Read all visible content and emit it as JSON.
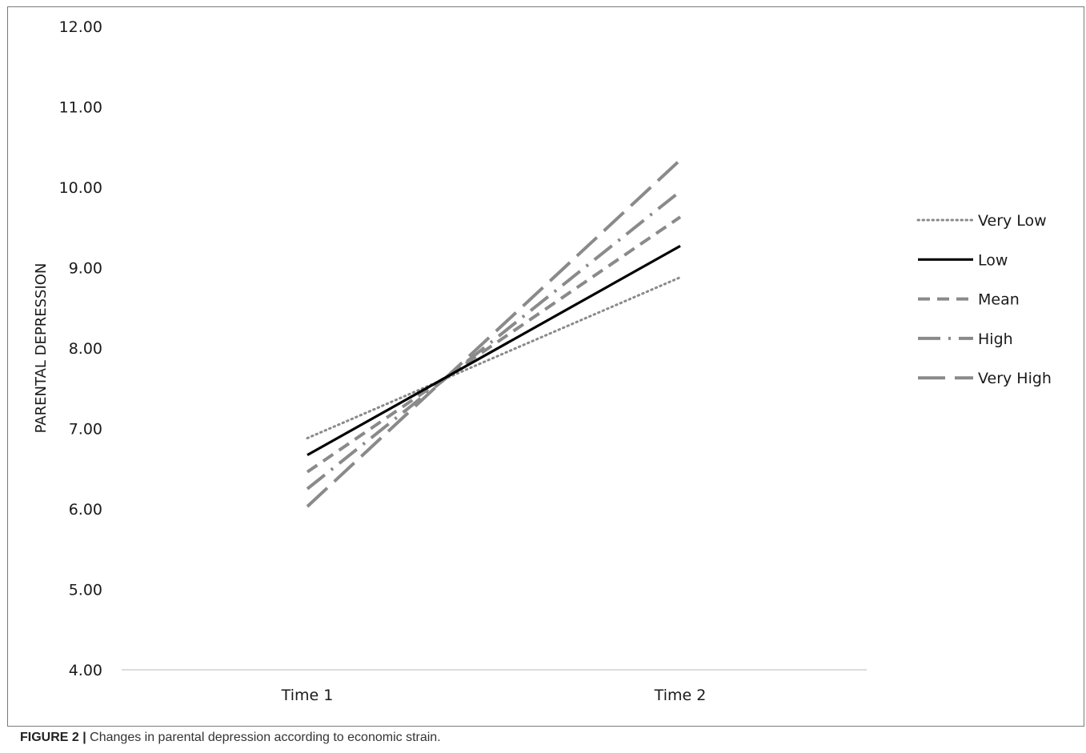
{
  "chart_data": {
    "type": "line",
    "title": "",
    "xlabel": "",
    "ylabel": "PARENTAL DEPRESSION",
    "categories": [
      "Time 1",
      "Time 2"
    ],
    "ylim": [
      4.0,
      12.0
    ],
    "yticks": [
      "4.00",
      "5.00",
      "6.00",
      "7.00",
      "8.00",
      "9.00",
      "10.00",
      "11.00",
      "12.00"
    ],
    "grid": false,
    "legend_position": "right",
    "series": [
      {
        "name": "Very Low",
        "values": [
          6.88,
          8.88
        ],
        "color": "#8a8a8a",
        "dash": "dotted"
      },
      {
        "name": "Low",
        "values": [
          6.67,
          9.27
        ],
        "color": "#000000",
        "dash": "solid"
      },
      {
        "name": "Mean",
        "values": [
          6.46,
          9.63
        ],
        "color": "#8a8a8a",
        "dash": "dashed"
      },
      {
        "name": "High",
        "values": [
          6.25,
          9.95
        ],
        "color": "#8a8a8a",
        "dash": "longdashdot"
      },
      {
        "name": "Very High",
        "values": [
          6.03,
          10.34
        ],
        "color": "#8a8a8a",
        "dash": "longdash"
      }
    ]
  },
  "caption": {
    "label": "FIGURE 2 |",
    "text": " Changes in parental depression according to economic strain."
  }
}
